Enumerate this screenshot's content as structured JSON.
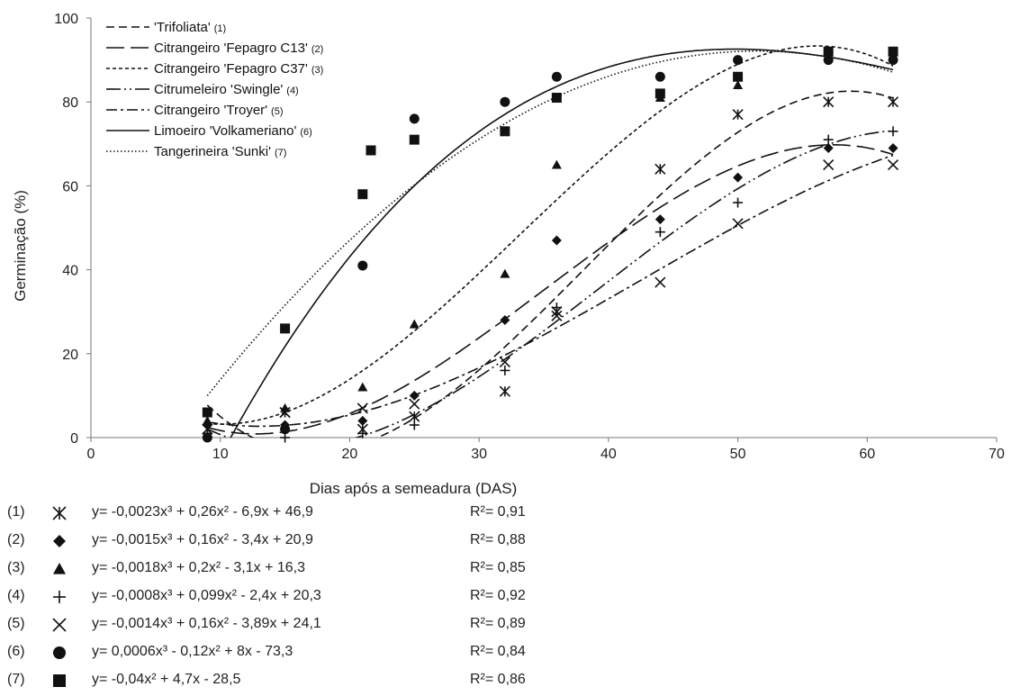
{
  "chart_data": {
    "type": "scatter",
    "xlabel": "Dias após a semeadura (DAS)",
    "ylabel": "Germinação (%)",
    "xlim": [
      0,
      70
    ],
    "ylim": [
      0,
      100
    ],
    "xticks": [
      0,
      10,
      20,
      30,
      40,
      50,
      60,
      70
    ],
    "yticks": [
      0,
      20,
      40,
      60,
      80,
      100
    ],
    "legend_position": "top-left",
    "x": [
      9,
      15,
      21,
      25,
      32,
      36,
      44,
      50,
      57,
      62
    ],
    "series": [
      {
        "name": "'Trifoliata'",
        "num": "(1)",
        "marker": "asterisk",
        "dash": "9 5",
        "values": [
          2,
          6,
          2,
          5,
          11,
          30,
          64,
          77,
          80,
          80
        ],
        "equation": "y= -0,0023x³ + 0,26x² - 6,9x + 46,9",
        "r2": "R²= 0,91"
      },
      {
        "name": "Citrangeiro 'Fepagro C13'",
        "num": "(2)",
        "marker": "diamond",
        "dash": "20 7",
        "values": [
          3,
          3,
          4,
          10,
          28,
          47,
          52,
          62,
          69,
          69
        ],
        "equation": "y= -0,0015x³ + 0,16x² - 3,4x + 20,9",
        "r2": "R²= 0,88"
      },
      {
        "name": "Citrangeiro 'Fepagro C37'",
        "num": "(3)",
        "marker": "triangle",
        "dash": "4 3",
        "values": [
          4,
          7,
          12,
          27,
          39,
          65,
          81,
          84,
          91,
          91
        ],
        "equation": "y= -0,0018x³ + 0,2x² - 3,1x + 16,3",
        "r2": "R²= 0,85"
      },
      {
        "name": "Citrumeleiro 'Swingle'",
        "num": "(4)",
        "marker": "plus",
        "dash": "16 4 2 4 2 4",
        "values": [
          1,
          0,
          1,
          3,
          16,
          31,
          49,
          56,
          71,
          73
        ],
        "equation": "y= -0,0008x³ + 0,099x² - 2,4x + 20,3",
        "r2": "R²= 0,92"
      },
      {
        "name": "Citrangeiro 'Troyer'",
        "num": "(5)",
        "marker": "x",
        "dash": "12 4 3 4",
        "values": [
          2,
          6,
          7,
          8,
          18,
          29,
          37,
          51,
          65,
          65
        ],
        "equation": "y= -0,0014x³ + 0,16x² - 3,89x + 24,1",
        "r2": "R²= 0,89"
      },
      {
        "name": "Limoeiro 'Volkameriano'",
        "num": "(6)",
        "marker": "circle",
        "dash": "",
        "values": [
          0,
          2,
          41,
          76,
          80,
          86,
          86,
          90,
          90,
          90
        ],
        "equation": "y= 0,0006x³ - 0,12x² + 8x - 73,3",
        "r2": "R²= 0,84"
      },
      {
        "name": "Tangerineira 'Sunki'",
        "num": "(7)",
        "marker": "square",
        "dash": "1.5 2.5",
        "values": [
          6,
          26,
          58,
          71,
          73,
          81,
          82,
          86,
          92,
          92
        ],
        "equation": "y= -0,04x² + 4,7x - 28,5",
        "r2": "R²= 0,86"
      }
    ]
  }
}
